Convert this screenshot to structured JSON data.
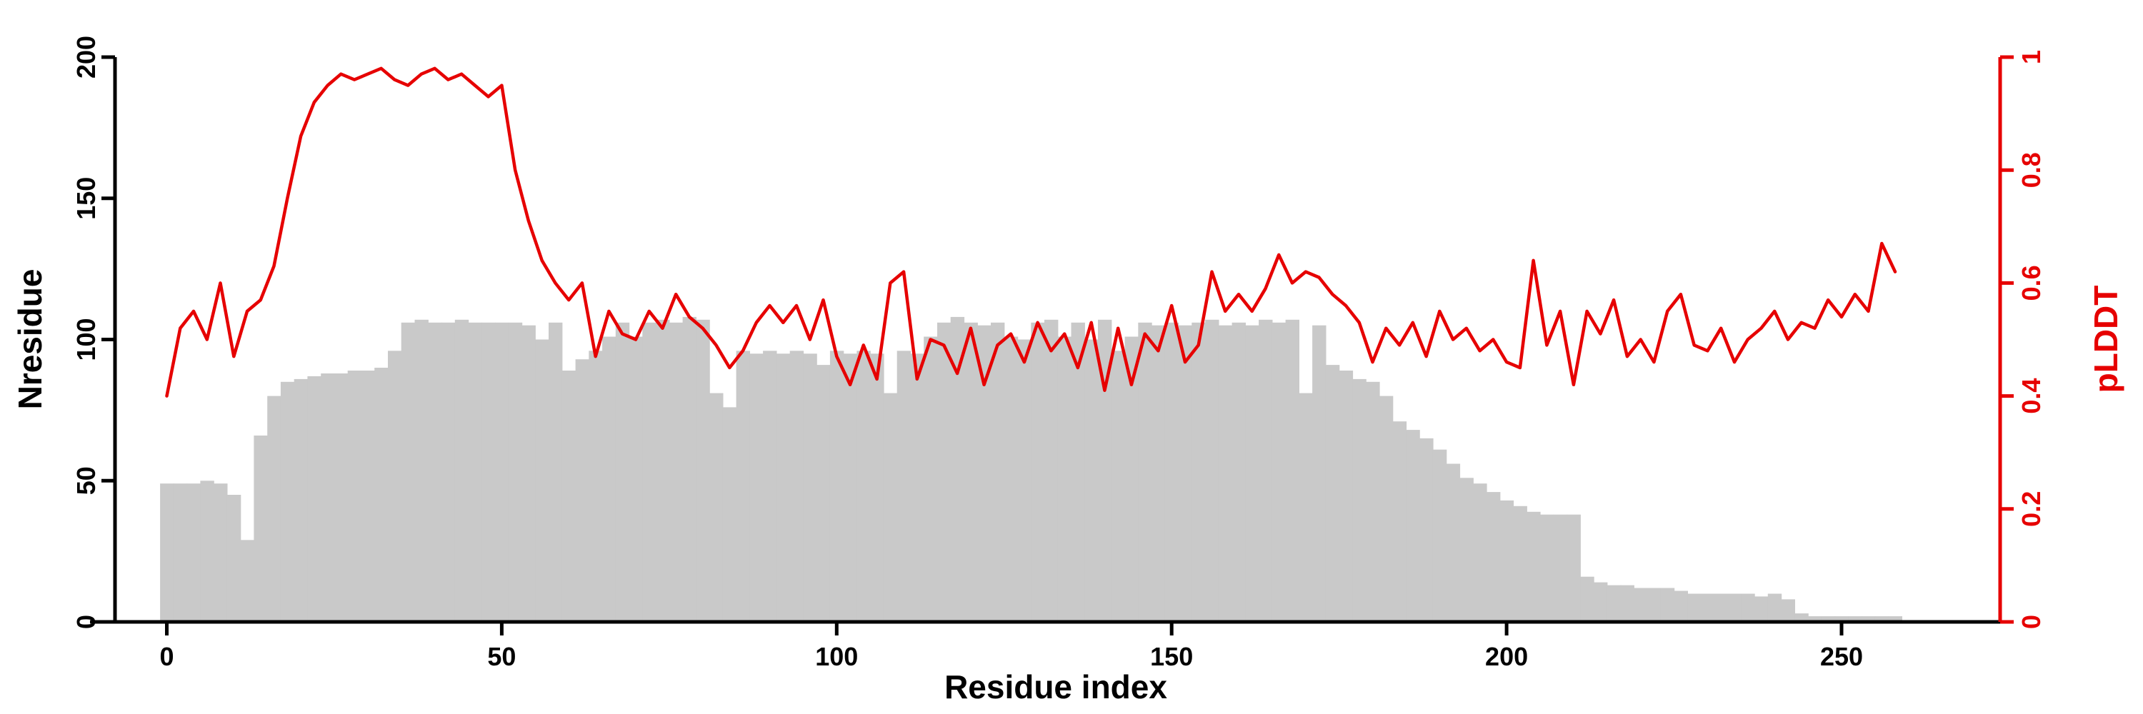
{
  "page": {
    "background": "#ffffff"
  },
  "chart_data": {
    "type": "bar+line",
    "title": "",
    "grid": false,
    "legend": "none",
    "x_axis": {
      "label": "Residue index",
      "range": [
        0,
        258
      ],
      "ticks": [
        0,
        50,
        100,
        150,
        200,
        250
      ],
      "tick_labels": [
        "0",
        "50",
        "100",
        "150",
        "200",
        "250"
      ],
      "color": "#000000"
    },
    "left_axis": {
      "label": "Nresidue",
      "range": [
        0,
        200
      ],
      "ticks": [
        0,
        50,
        100,
        150,
        200
      ],
      "tick_labels": [
        "0",
        "50",
        "100",
        "150",
        "200"
      ],
      "color": "#000000"
    },
    "right_axis": {
      "label": "pLDDT",
      "range": [
        0,
        1
      ],
      "ticks": [
        0,
        0.2,
        0.4,
        0.6,
        0.8,
        1
      ],
      "tick_labels": [
        "0",
        "0.2",
        "0.4",
        "0.6",
        "0.8",
        "1"
      ],
      "color": "#e60000"
    },
    "x": [
      0,
      2,
      4,
      6,
      8,
      10,
      12,
      14,
      16,
      18,
      20,
      22,
      24,
      26,
      28,
      30,
      32,
      34,
      36,
      38,
      40,
      42,
      44,
      46,
      48,
      50,
      52,
      54,
      56,
      58,
      60,
      62,
      64,
      66,
      68,
      70,
      72,
      74,
      76,
      78,
      80,
      82,
      84,
      86,
      88,
      90,
      92,
      94,
      96,
      98,
      100,
      102,
      104,
      106,
      108,
      110,
      112,
      114,
      116,
      118,
      120,
      122,
      124,
      126,
      128,
      130,
      132,
      134,
      136,
      138,
      140,
      142,
      144,
      146,
      148,
      150,
      152,
      154,
      156,
      158,
      160,
      162,
      164,
      166,
      168,
      170,
      172,
      174,
      176,
      178,
      180,
      182,
      184,
      186,
      188,
      190,
      192,
      194,
      196,
      198,
      200,
      202,
      204,
      206,
      208,
      210,
      212,
      214,
      216,
      218,
      220,
      222,
      224,
      226,
      228,
      230,
      232,
      234,
      236,
      238,
      240,
      242,
      244,
      246,
      248,
      250,
      252,
      254,
      256,
      258
    ],
    "series": [
      {
        "name": "Nresidue",
        "type": "bar",
        "axis": "left",
        "color": "#c9c9c9",
        "values": [
          49,
          49,
          49,
          50,
          49,
          45,
          29,
          66,
          80,
          85,
          86,
          87,
          88,
          88,
          89,
          89,
          90,
          96,
          106,
          107,
          106,
          106,
          107,
          106,
          106,
          106,
          106,
          105,
          100,
          106,
          89,
          93,
          96,
          101,
          106,
          101,
          106,
          107,
          106,
          108,
          107,
          81,
          76,
          96,
          95,
          96,
          95,
          96,
          95,
          91,
          96,
          95,
          96,
          95,
          81,
          96,
          95,
          101,
          106,
          108,
          106,
          105,
          106,
          101,
          100,
          106,
          107,
          101,
          106,
          100,
          107,
          96,
          101,
          106,
          105,
          106,
          105,
          106,
          107,
          105,
          106,
          105,
          107,
          106,
          107,
          81,
          105,
          91,
          89,
          86,
          85,
          80,
          71,
          68,
          65,
          61,
          56,
          51,
          49,
          46,
          43,
          41,
          39,
          38,
          38,
          38,
          16,
          14,
          13,
          13,
          12,
          12,
          12,
          11,
          10,
          10,
          10,
          10,
          10,
          9,
          10,
          8,
          3,
          2,
          2,
          2,
          2,
          2,
          2,
          2
        ]
      },
      {
        "name": "pLDDT",
        "type": "line",
        "axis": "right",
        "color": "#e60000",
        "values": [
          0.4,
          0.52,
          0.55,
          0.5,
          0.6,
          0.47,
          0.55,
          0.57,
          0.63,
          0.75,
          0.86,
          0.92,
          0.95,
          0.97,
          0.96,
          0.97,
          0.98,
          0.96,
          0.95,
          0.97,
          0.98,
          0.96,
          0.97,
          0.95,
          0.93,
          0.95,
          0.8,
          0.71,
          0.64,
          0.6,
          0.57,
          0.6,
          0.47,
          0.55,
          0.51,
          0.5,
          0.55,
          0.52,
          0.58,
          0.54,
          0.52,
          0.49,
          0.45,
          0.48,
          0.53,
          0.56,
          0.53,
          0.56,
          0.5,
          0.57,
          0.47,
          0.42,
          0.49,
          0.43,
          0.6,
          0.62,
          0.43,
          0.5,
          0.49,
          0.44,
          0.52,
          0.42,
          0.49,
          0.51,
          0.46,
          0.53,
          0.48,
          0.51,
          0.45,
          0.53,
          0.41,
          0.52,
          0.42,
          0.51,
          0.48,
          0.56,
          0.46,
          0.49,
          0.62,
          0.55,
          0.58,
          0.55,
          0.59,
          0.65,
          0.6,
          0.62,
          0.61,
          0.58,
          0.56,
          0.53,
          0.46,
          0.52,
          0.49,
          0.53,
          0.47,
          0.55,
          0.5,
          0.52,
          0.48,
          0.5,
          0.46,
          0.45,
          0.64,
          0.49,
          0.55,
          0.42,
          0.55,
          0.51,
          0.57,
          0.47,
          0.5,
          0.46,
          0.55,
          0.58,
          0.49,
          0.48,
          0.52,
          0.46,
          0.5,
          0.52,
          0.55,
          0.5,
          0.53,
          0.52,
          0.57,
          0.54,
          0.58,
          0.55,
          0.67,
          0.62
        ]
      }
    ]
  }
}
